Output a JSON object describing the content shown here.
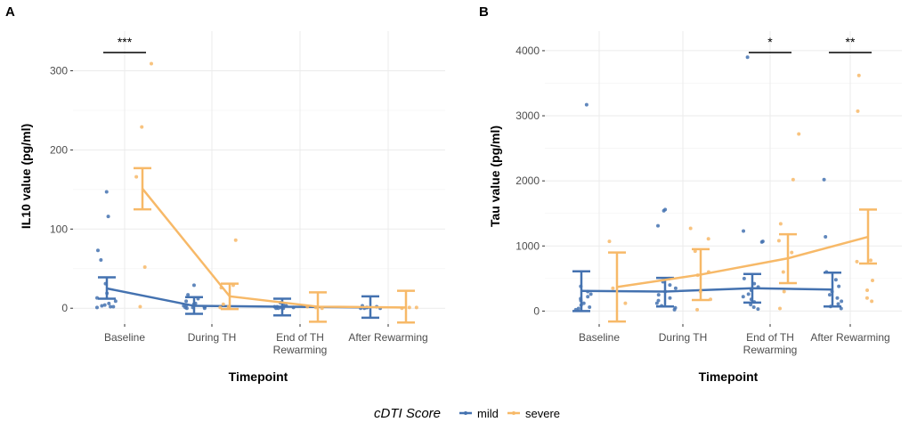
{
  "colors": {
    "mild": "#4472b0",
    "severe": "#f7b968",
    "grid": "#ebebeb"
  },
  "legend": {
    "title": "cDTI Score",
    "entries": [
      "mild",
      "severe"
    ]
  },
  "chart_data": [
    {
      "panel": "A",
      "type": "scatter",
      "xlabel": "Timepoint",
      "ylabel": "IL10 value (pg/ml)",
      "categories": [
        "Baseline",
        "During TH",
        "End of TH\nRewarming",
        "After Rewarming"
      ],
      "ylim": [
        -20,
        350
      ],
      "yticks": [
        0,
        100,
        200,
        300
      ],
      "series": [
        {
          "name": "mild",
          "means": [
            25,
            3,
            2,
            1
          ],
          "ci_low": [
            12,
            -7,
            -9,
            -12
          ],
          "ci_high": [
            39,
            14,
            12,
            15
          ],
          "points": [
            [
              0,
              147
            ],
            [
              0,
              116
            ],
            [
              0,
              73
            ],
            [
              0,
              61
            ],
            [
              0,
              31
            ],
            [
              0,
              19
            ],
            [
              0,
              13
            ],
            [
              0,
              9
            ],
            [
              0,
              6
            ],
            [
              0,
              4
            ],
            [
              0,
              3
            ],
            [
              0,
              2
            ],
            [
              0,
              2
            ],
            [
              0,
              1
            ],
            [
              1,
              29
            ],
            [
              1,
              17
            ],
            [
              1,
              12
            ],
            [
              1,
              9
            ],
            [
              1,
              6
            ],
            [
              1,
              5
            ],
            [
              1,
              4
            ],
            [
              1,
              3
            ],
            [
              1,
              2
            ],
            [
              1,
              2
            ],
            [
              1,
              1
            ],
            [
              1,
              1
            ],
            [
              1,
              0
            ],
            [
              1,
              0
            ],
            [
              2,
              7
            ],
            [
              2,
              5
            ],
            [
              2,
              3
            ],
            [
              2,
              2
            ],
            [
              2,
              2
            ],
            [
              2,
              1
            ],
            [
              2,
              1
            ],
            [
              2,
              0
            ],
            [
              2,
              0
            ],
            [
              2,
              0
            ],
            [
              3,
              3
            ],
            [
              3,
              2
            ],
            [
              3,
              1
            ],
            [
              3,
              1
            ],
            [
              3,
              0
            ],
            [
              3,
              0
            ],
            [
              3,
              0
            ]
          ]
        },
        {
          "name": "severe",
          "means": [
            151,
            15,
            2,
            1
          ],
          "ci_low": [
            125,
            -1,
            -17,
            -18
          ],
          "ci_high": [
            177,
            31,
            20,
            22
          ],
          "points": [
            [
              0,
              309
            ],
            [
              0,
              229
            ],
            [
              0,
              166
            ],
            [
              0,
              52
            ],
            [
              0,
              2
            ],
            [
              1,
              86
            ],
            [
              1,
              29
            ],
            [
              1,
              26
            ],
            [
              1,
              5
            ],
            [
              1,
              2
            ],
            [
              1,
              1
            ],
            [
              2,
              2
            ],
            [
              2,
              1
            ],
            [
              2,
              0
            ],
            [
              3,
              1
            ],
            [
              3,
              1
            ],
            [
              3,
              0
            ]
          ]
        }
      ],
      "significance": [
        {
          "category_index": 0,
          "label": "***"
        }
      ]
    },
    {
      "panel": "B",
      "type": "scatter",
      "xlabel": "Timepoint",
      "ylabel": "Tau value (pg/ml)",
      "categories": [
        "Baseline",
        "During TH",
        "End of TH\nRewarming",
        "After Rewarming"
      ],
      "ylim": [
        -200,
        4300
      ],
      "yticks": [
        0,
        1000,
        2000,
        3000,
        4000
      ],
      "series": [
        {
          "name": "mild",
          "means": [
            310,
            300,
            350,
            330
          ],
          "ci_low": [
            0,
            70,
            130,
            70
          ],
          "ci_high": [
            610,
            510,
            570,
            590
          ],
          "points": [
            [
              0,
              3170
            ],
            [
              0,
              380
            ],
            [
              0,
              300
            ],
            [
              0,
              260
            ],
            [
              0,
              220
            ],
            [
              0,
              190
            ],
            [
              0,
              160
            ],
            [
              0,
              120
            ],
            [
              0,
              90
            ],
            [
              0,
              60
            ],
            [
              0,
              40
            ],
            [
              0,
              20
            ],
            [
              1,
              1540
            ],
            [
              1,
              1560
            ],
            [
              1,
              1310
            ],
            [
              1,
              500
            ],
            [
              1,
              450
            ],
            [
              1,
              400
            ],
            [
              1,
              350
            ],
            [
              1,
              300
            ],
            [
              1,
              250
            ],
            [
              1,
              200
            ],
            [
              1,
              160
            ],
            [
              1,
              120
            ],
            [
              1,
              80
            ],
            [
              1,
              50
            ],
            [
              1,
              20
            ],
            [
              2,
              3900
            ],
            [
              2,
              1230
            ],
            [
              2,
              1060
            ],
            [
              2,
              1070
            ],
            [
              2,
              500
            ],
            [
              2,
              420
            ],
            [
              2,
              370
            ],
            [
              2,
              320
            ],
            [
              2,
              260
            ],
            [
              2,
              220
            ],
            [
              2,
              180
            ],
            [
              2,
              140
            ],
            [
              2,
              100
            ],
            [
              2,
              60
            ],
            [
              2,
              30
            ],
            [
              3,
              2020
            ],
            [
              3,
              1140
            ],
            [
              3,
              600
            ],
            [
              3,
              480
            ],
            [
              3,
              380
            ],
            [
              3,
              300
            ],
            [
              3,
              250
            ],
            [
              3,
              200
            ],
            [
              3,
              150
            ],
            [
              3,
              110
            ],
            [
              3,
              70
            ],
            [
              3,
              40
            ]
          ]
        },
        {
          "name": "severe",
          "means": [
            370,
            560,
            810,
            1140
          ],
          "ci_low": [
            -160,
            170,
            430,
            730
          ],
          "ci_high": [
            900,
            950,
            1180,
            1560
          ],
          "points": [
            [
              0,
              1070
            ],
            [
              0,
              350
            ],
            [
              0,
              120
            ],
            [
              1,
              1270
            ],
            [
              1,
              1110
            ],
            [
              1,
              920
            ],
            [
              1,
              600
            ],
            [
              1,
              550
            ],
            [
              1,
              300
            ],
            [
              1,
              180
            ],
            [
              1,
              20
            ],
            [
              2,
              2720
            ],
            [
              2,
              2020
            ],
            [
              2,
              1340
            ],
            [
              2,
              1080
            ],
            [
              2,
              900
            ],
            [
              2,
              600
            ],
            [
              2,
              300
            ],
            [
              2,
              40
            ],
            [
              3,
              3620
            ],
            [
              3,
              3070
            ],
            [
              3,
              780
            ],
            [
              3,
              760
            ],
            [
              3,
              470
            ],
            [
              3,
              320
            ],
            [
              3,
              200
            ],
            [
              3,
              150
            ]
          ]
        }
      ],
      "significance": [
        {
          "category_index": 2,
          "label": "*"
        },
        {
          "category_index": 3,
          "label": "**"
        }
      ]
    }
  ]
}
